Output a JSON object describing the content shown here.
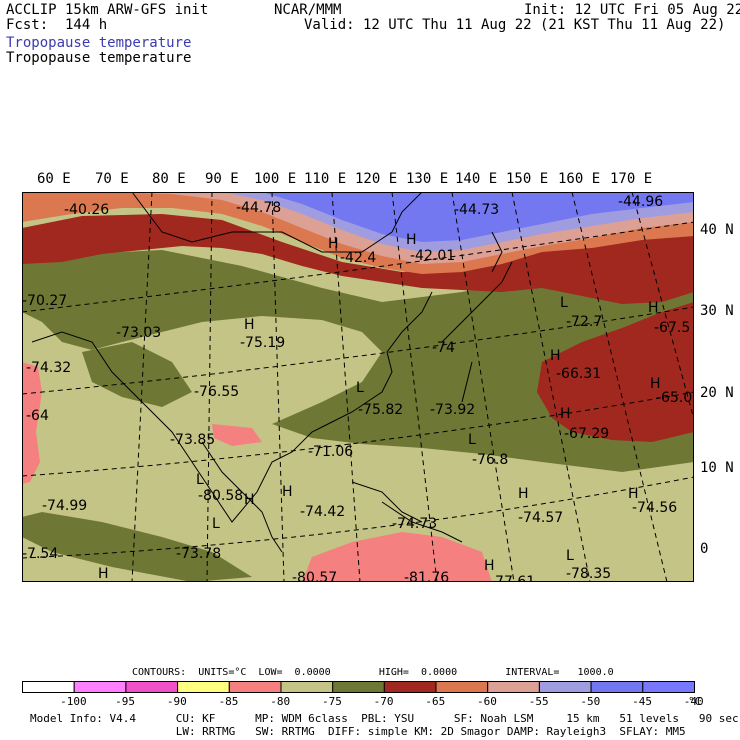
{
  "header": {
    "model": "ACCLIP 15km ARW-GFS init",
    "fcst": "Fcst:  144 h",
    "center": "NCAR/MMM",
    "init": "Init: 12 UTC Fri 05 Aug 22",
    "valid": "Valid: 12 UTC Thu 11 Aug 22 (21 KST Thu 11 Aug 22)",
    "field_title_1": "Tropopause temperature",
    "field_title_2": "Tropopause temperature"
  },
  "map": {
    "lon_labels": [
      "60 E",
      "70 E",
      "80 E",
      "90 E",
      "100 E",
      "110 E",
      "120 E",
      "130 E",
      "140 E",
      "150 E",
      "160 E",
      "170 E"
    ],
    "lat_labels": [
      "40 N",
      "30 N",
      "20 N",
      "10 N",
      "0"
    ],
    "annotations": [
      {
        "type": "value",
        "text": "-40.26"
      },
      {
        "type": "value",
        "text": "-44.78"
      },
      {
        "type": "value",
        "text": "-44.73"
      },
      {
        "type": "value",
        "text": "-44.96"
      },
      {
        "type": "symbol",
        "text": "H"
      },
      {
        "type": "value",
        "text": "-42.4"
      },
      {
        "type": "symbol",
        "text": "H"
      },
      {
        "type": "value",
        "text": "-42.01"
      },
      {
        "type": "value",
        "text": "-70.27"
      },
      {
        "type": "value",
        "text": "-73.03"
      },
      {
        "type": "symbol",
        "text": "H"
      },
      {
        "type": "value",
        "text": "-75.19"
      },
      {
        "type": "symbol",
        "text": "L"
      },
      {
        "type": "value",
        "text": "-72.7"
      },
      {
        "type": "symbol",
        "text": "H"
      },
      {
        "type": "value",
        "text": "-67.5"
      },
      {
        "type": "value",
        "text": "-74.32"
      },
      {
        "type": "value",
        "text": "-76.55"
      },
      {
        "type": "value",
        "text": "-74"
      },
      {
        "type": "symbol",
        "text": "H"
      },
      {
        "type": "value",
        "text": "-66.31"
      },
      {
        "type": "symbol",
        "text": "H"
      },
      {
        "type": "value",
        "text": "-65.0"
      },
      {
        "type": "value",
        "text": "-64"
      },
      {
        "type": "symbol",
        "text": "L"
      },
      {
        "type": "value",
        "text": "-75.82"
      },
      {
        "type": "value",
        "text": "-73.92"
      },
      {
        "type": "symbol",
        "text": "H"
      },
      {
        "type": "value",
        "text": "-67.29"
      },
      {
        "type": "value",
        "text": "-73.85"
      },
      {
        "type": "value",
        "text": "-71.06"
      },
      {
        "type": "symbol",
        "text": "L"
      },
      {
        "type": "value",
        "text": "-76.8"
      },
      {
        "type": "symbol",
        "text": "L"
      },
      {
        "type": "symbol",
        "text": "H"
      },
      {
        "type": "value",
        "text": "-74.99"
      },
      {
        "type": "value",
        "text": "-80.58"
      },
      {
        "type": "symbol",
        "text": "H"
      },
      {
        "type": "value",
        "text": "-74.42"
      },
      {
        "type": "value",
        "text": "-74.73"
      },
      {
        "type": "symbol",
        "text": "H"
      },
      {
        "type": "value",
        "text": "-74.57"
      },
      {
        "type": "symbol",
        "text": "H"
      },
      {
        "type": "value",
        "text": "-74.56"
      },
      {
        "type": "value",
        "text": "-73.78"
      },
      {
        "type": "value",
        "text": "-7.54"
      },
      {
        "type": "symbol",
        "text": "H"
      },
      {
        "type": "value",
        "text": "-80.57"
      },
      {
        "type": "value",
        "text": "-81.76"
      },
      {
        "type": "symbol",
        "text": "H"
      },
      {
        "type": "value",
        "text": "-77.61"
      },
      {
        "type": "symbol",
        "text": "L"
      },
      {
        "type": "value",
        "text": "-78.35"
      },
      {
        "type": "symbol",
        "text": "L"
      }
    ]
  },
  "legend": {
    "contours_line": "CONTOURS:  UNITS=°C  LOW=  0.0000        HIGH=  0.0000        INTERVAL=   1000.0",
    "unit": "°C",
    "bins": [
      {
        "color": "#ffffff"
      },
      {
        "color": "#ff80ff"
      },
      {
        "color": "#f050c8"
      },
      {
        "color": "#ffff80"
      },
      {
        "color": "#f58080"
      },
      {
        "color": "#c4c486"
      },
      {
        "color": "#6e7834"
      },
      {
        "color": "#a0281e"
      },
      {
        "color": "#dc7850"
      },
      {
        "color": "#dca094"
      },
      {
        "color": "#a09ce0"
      },
      {
        "color": "#7478f0"
      },
      {
        "color": "#7878ff"
      }
    ],
    "ticks": [
      "-100",
      "-95",
      "-90",
      "-85",
      "-80",
      "-75",
      "-70",
      "-65",
      "-60",
      "-55",
      "-50",
      "-45",
      "-40"
    ]
  },
  "footer": {
    "line1": "Model Info: V4.4      CU: KF      MP: WDM 6class  PBL: YSU      SF: Noah LSM     15 km   51 levels   90 sec",
    "line2": "                      LW: RRTMG   SW: RRTMG  DIFF: simple KM: 2D Smagor DAMP: Rayleigh3  SFLAY: MM5"
  }
}
